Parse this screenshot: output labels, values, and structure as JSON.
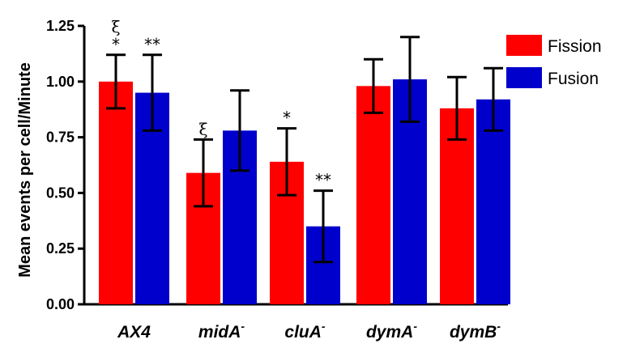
{
  "chart_data": {
    "type": "bar",
    "title": "",
    "xlabel": "",
    "ylabel": "Mean events per cell/Minute",
    "ylim": [
      0,
      1.25
    ],
    "yticks": [
      "0.00",
      "0.25",
      "0.50",
      "0.75",
      "1.00",
      "1.25"
    ],
    "ytick_values": [
      0,
      0.25,
      0.5,
      0.75,
      1.0,
      1.25
    ],
    "categories": [
      {
        "base": "AX4",
        "sup": ""
      },
      {
        "base": "midA",
        "sup": "-"
      },
      {
        "base": "cluA",
        "sup": "-"
      },
      {
        "base": "dymA",
        "sup": "-"
      },
      {
        "base": "dymB",
        "sup": "-"
      }
    ],
    "series": [
      {
        "name": "Fission",
        "color": "#ff0000",
        "values": [
          1.0,
          0.59,
          0.64,
          0.98,
          0.88
        ],
        "error": [
          0.12,
          0.15,
          0.15,
          0.12,
          0.14
        ],
        "annotations": [
          "*",
          "",
          "*",
          "",
          ""
        ],
        "symbols": [
          "ξ",
          "ξ",
          "",
          "",
          ""
        ]
      },
      {
        "name": "Fusion",
        "color": "#0000cc",
        "values": [
          0.95,
          0.78,
          0.35,
          1.01,
          0.92
        ],
        "error": [
          0.17,
          0.18,
          0.16,
          0.19,
          0.14
        ],
        "annotations": [
          "**",
          "",
          "**",
          "",
          ""
        ],
        "symbols": [
          "",
          "",
          "",
          "",
          ""
        ]
      }
    ],
    "legend": "top-right",
    "grid": false
  }
}
